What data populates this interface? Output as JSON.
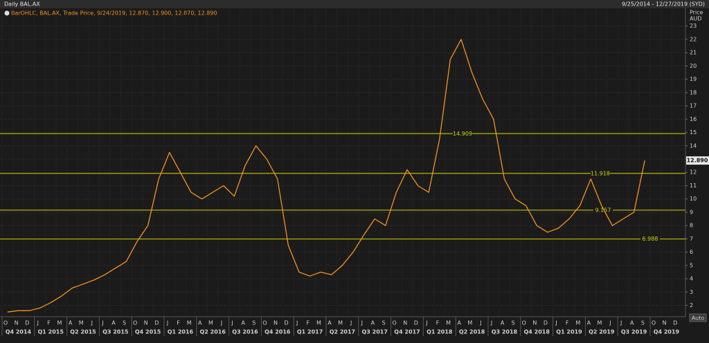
{
  "chart_data": {
    "type": "line",
    "title": "Daily BAL.AX",
    "date_range": "9/25/2014 - 12/27/2019 (SYD)",
    "y_label": "Price",
    "y_unit": "AUD",
    "button": "Auto",
    "grid": true,
    "categories": [
      "2014-10",
      "2014-11",
      "2014-12",
      "2015-01",
      "2015-02",
      "2015-03",
      "2015-04",
      "2015-05",
      "2015-06",
      "2015-07",
      "2015-08",
      "2015-09",
      "2015-10",
      "2015-11",
      "2015-12",
      "2016-01",
      "2016-02",
      "2016-03",
      "2016-04",
      "2016-05",
      "2016-06",
      "2016-07",
      "2016-08",
      "2016-09",
      "2016-10",
      "2016-11",
      "2016-12",
      "2017-01",
      "2017-02",
      "2017-03",
      "2017-04",
      "2017-05",
      "2017-06",
      "2017-07",
      "2017-08",
      "2017-09",
      "2017-10",
      "2017-11",
      "2017-12",
      "2018-01",
      "2018-02",
      "2018-03",
      "2018-04",
      "2018-05",
      "2018-06",
      "2018-07",
      "2018-08",
      "2018-09",
      "2018-10",
      "2018-11",
      "2018-12",
      "2019-01",
      "2019-02",
      "2019-03",
      "2019-04",
      "2019-05",
      "2019-06",
      "2019-07",
      "2019-08",
      "2019-09",
      "2019-10",
      "2019-11",
      "2019-12"
    ],
    "month_labels": [
      "O",
      "N",
      "D",
      "J",
      "F",
      "M",
      "A",
      "M",
      "J",
      "J",
      "A",
      "S",
      "O",
      "N",
      "D",
      "J",
      "F",
      "M",
      "A",
      "M",
      "J",
      "J",
      "A",
      "S",
      "O",
      "N",
      "D",
      "J",
      "F",
      "M",
      "A",
      "M",
      "J",
      "J",
      "A",
      "S",
      "O",
      "N",
      "D",
      "J",
      "F",
      "M",
      "A",
      "M",
      "J",
      "J",
      "A",
      "S",
      "O",
      "N",
      "D",
      "J",
      "F",
      "M",
      "A",
      "M",
      "J",
      "J",
      "A",
      "S",
      "O",
      "N",
      "D"
    ],
    "quarter_labels": [
      "Q4 2014",
      "Q1 2015",
      "Q2 2015",
      "Q3 2015",
      "Q4 2015",
      "Q1 2016",
      "Q2 2016",
      "Q3 2016",
      "Q4 2016",
      "Q1 2017",
      "Q2 2017",
      "Q3 2017",
      "Q4 2017",
      "Q1 2018",
      "Q2 2018",
      "Q3 2018",
      "Q4 2018",
      "Q1 2019",
      "Q2 2019",
      "Q3 2019",
      "Q4 2019"
    ],
    "series": [
      {
        "name": "BarOHLC, BAL.AX, Trade Price, 9/24/2019, 12.870, 12.900, 12.870, 12.890",
        "color": "#f7941d",
        "values": [
          1.5,
          1.6,
          1.6,
          1.8,
          2.2,
          2.7,
          3.3,
          3.6,
          3.9,
          4.3,
          4.8,
          5.3,
          6.8,
          8.0,
          11.5,
          13.5,
          12.0,
          10.5,
          10.0,
          10.5,
          11.0,
          10.2,
          12.5,
          14.0,
          13.0,
          11.5,
          6.5,
          4.5,
          4.2,
          4.5,
          4.3,
          5.0,
          6.0,
          7.3,
          8.5,
          8.0,
          10.5,
          12.2,
          11.0,
          10.5,
          14.5,
          20.5,
          22.0,
          19.5,
          17.5,
          16.0,
          11.5,
          10.0,
          9.5,
          8.0,
          7.5,
          7.8,
          8.5,
          9.5,
          11.5,
          9.5,
          8.0,
          8.5,
          9.0,
          12.89,
          null,
          null,
          null
        ]
      }
    ],
    "last": {
      "value": 12.89,
      "label": "12.890"
    },
    "levels": [
      14.909,
      11.918,
      9.157,
      6.988
    ],
    "level_color": "#d6d600",
    "ylim": [
      1.3,
      23.4
    ],
    "yticks": [
      2,
      3,
      4,
      5,
      6,
      7,
      8,
      9,
      10,
      11,
      12,
      13,
      14,
      15,
      16,
      17,
      18,
      19,
      20,
      21,
      22,
      23
    ]
  }
}
